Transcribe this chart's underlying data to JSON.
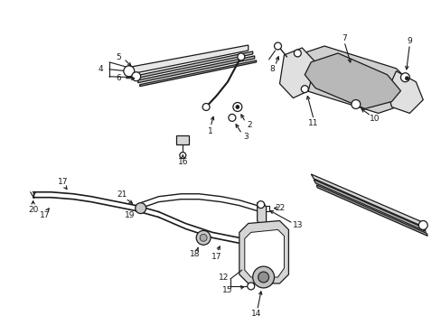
{
  "bg_color": "#ffffff",
  "line_color": "#1a1a1a",
  "figure_width": 4.89,
  "figure_height": 3.6,
  "dpi": 100
}
